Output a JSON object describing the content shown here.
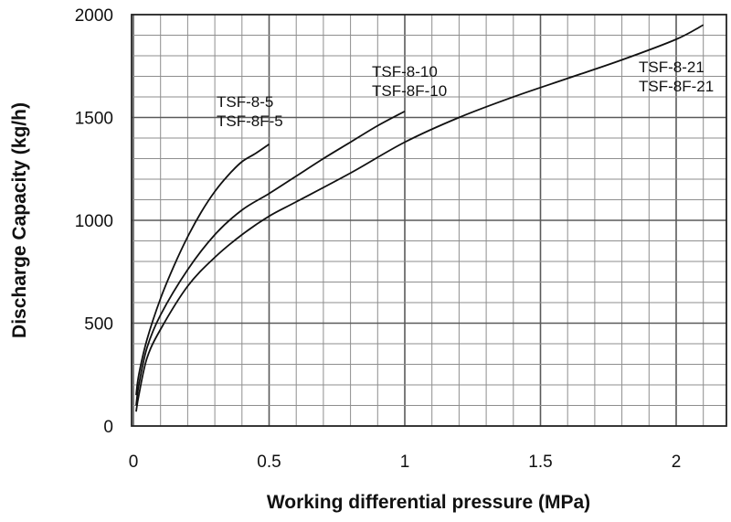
{
  "chart_data": {
    "type": "line",
    "title": "",
    "xlabel": "Working differential pressure (MPa)",
    "ylabel": "Discharge Capacity (kg/h)",
    "xlim": [
      0,
      2.2
    ],
    "ylim": [
      0,
      2000
    ],
    "x_ticks": [
      0,
      0.5,
      1,
      1.5,
      2
    ],
    "x_tick_labels": [
      "0",
      "0.5",
      "1",
      "1.5",
      "2"
    ],
    "y_ticks": [
      0,
      500,
      1000,
      1500,
      2000
    ],
    "y_tick_labels": [
      "0",
      "500",
      "1000",
      "1500",
      "2000"
    ],
    "grid": true,
    "grid_minor_step_x": 0.1,
    "grid_minor_step_y": 100,
    "series": [
      {
        "labels": [
          "TSF-8-5",
          "TSF-8F-5"
        ],
        "x": [
          0.01,
          0.02,
          0.05,
          0.1,
          0.15,
          0.2,
          0.25,
          0.3,
          0.35,
          0.4,
          0.45,
          0.5
        ],
        "y": [
          150,
          250,
          420,
          620,
          780,
          920,
          1040,
          1140,
          1220,
          1285,
          1325,
          1370
        ]
      },
      {
        "labels": [
          "TSF-8-10",
          "TSF-8F-10"
        ],
        "x": [
          0.01,
          0.02,
          0.05,
          0.1,
          0.2,
          0.3,
          0.4,
          0.5,
          0.6,
          0.7,
          0.8,
          0.9,
          1.0
        ],
        "y": [
          100,
          200,
          380,
          540,
          760,
          930,
          1050,
          1130,
          1215,
          1300,
          1380,
          1460,
          1530
        ]
      },
      {
        "labels": [
          "TSF-8-21",
          "TSF-8F-21"
        ],
        "x": [
          0.01,
          0.02,
          0.05,
          0.1,
          0.2,
          0.3,
          0.4,
          0.5,
          0.6,
          0.8,
          1.0,
          1.2,
          1.4,
          1.6,
          1.8,
          2.0,
          2.1
        ],
        "y": [
          70,
          150,
          330,
          470,
          680,
          820,
          930,
          1020,
          1090,
          1230,
          1380,
          1500,
          1600,
          1690,
          1780,
          1880,
          1950
        ]
      }
    ]
  }
}
